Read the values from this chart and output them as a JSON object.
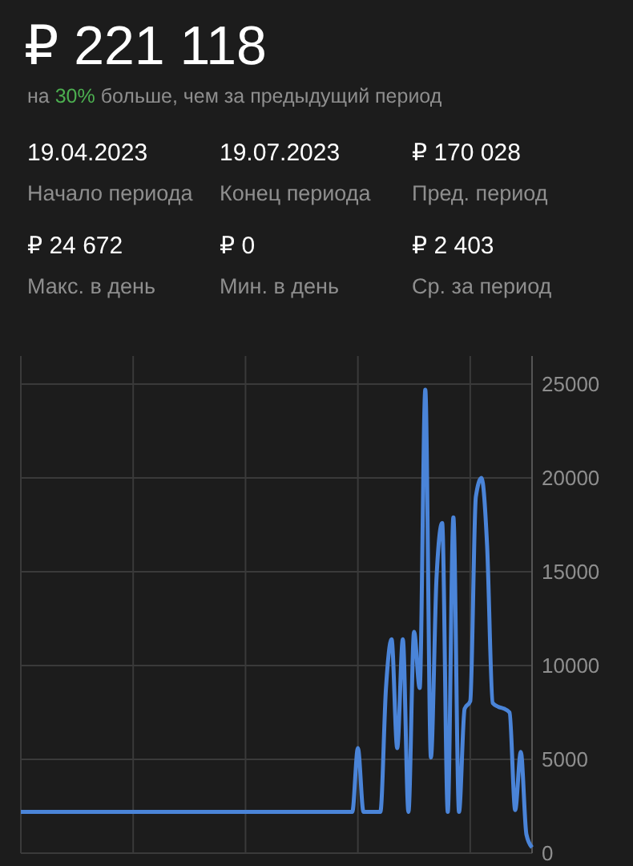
{
  "chart_data": {
    "type": "line",
    "title": "₽ 221 118",
    "subtitle": "на 30% больше, чем за предыдущий период",
    "annotations": [
      "19.04.2023",
      "Начало периода",
      "19.07.2023",
      "Конец периода",
      "₽  170 028",
      "Пред. период",
      "₽ 24 672",
      "Макс. в день",
      "₽ 0",
      "Мин. в день",
      "₽ 2 403",
      "Ср. за период"
    ],
    "categories": [
      null,
      null,
      null,
      null,
      null,
      null,
      null,
      null,
      null,
      null,
      null,
      null,
      null,
      null,
      null,
      null,
      null,
      null,
      null,
      null,
      null,
      null,
      null,
      null,
      null,
      null,
      null,
      null,
      null,
      null,
      null,
      null,
      null,
      null,
      null,
      null,
      null,
      null,
      null,
      null,
      null,
      null,
      null,
      null,
      null,
      null,
      null,
      null,
      null,
      null,
      null,
      null,
      null,
      null,
      null,
      null,
      null,
      null,
      null,
      null,
      null,
      null,
      null,
      null,
      null,
      null,
      null,
      null,
      null,
      null,
      null,
      null,
      null,
      null,
      null,
      null,
      null,
      null,
      null,
      null,
      null,
      null,
      null,
      null,
      null,
      null,
      null,
      null,
      null,
      null,
      null,
      null
    ],
    "series": [
      {
        "color": "#4a84d8",
        "values": [
          2200,
          2200,
          2200,
          2200,
          2200,
          2200,
          2200,
          2200,
          2200,
          2200,
          2200,
          2200,
          2200,
          2200,
          2200,
          2200,
          2200,
          2200,
          2200,
          2200,
          2200,
          2200,
          2200,
          2200,
          2200,
          2200,
          2200,
          2200,
          2200,
          2200,
          2200,
          2200,
          2200,
          2200,
          2200,
          2200,
          2200,
          2200,
          2200,
          2200,
          2200,
          2200,
          2200,
          2200,
          2200,
          2200,
          2200,
          2200,
          2200,
          2200,
          2200,
          2200,
          2200,
          2200,
          2200,
          2200,
          2200,
          2200,
          2200,
          2200,
          5600,
          2200,
          2200,
          2200,
          2200,
          8800,
          11400,
          5600,
          11400,
          2200,
          11800,
          8800,
          24700,
          5100,
          14700,
          17600,
          2200,
          17900,
          2200,
          7700,
          8100,
          19000,
          20000,
          16400,
          8000,
          7800,
          7700,
          7500,
          2300,
          5400,
          1000,
          300
        ]
      }
    ],
    "ylim": [
      0,
      26500
    ],
    "yticks": [
      0,
      5000,
      10000,
      15000,
      20000,
      25000
    ],
    "grid": true,
    "marker": "none",
    "line_style": "solid"
  }
}
